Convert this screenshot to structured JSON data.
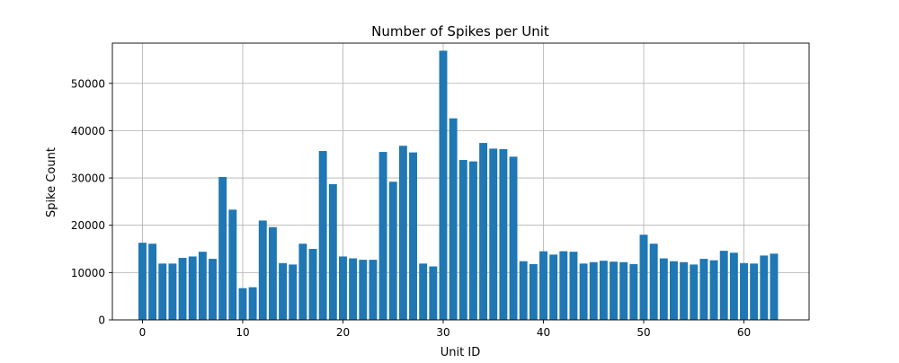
{
  "chart_data": {
    "type": "bar",
    "title": "Number of Spikes per Unit",
    "xlabel": "Unit ID",
    "ylabel": "Spike Count",
    "xlim": [
      -3,
      66.5
    ],
    "ylim": [
      0,
      58500
    ],
    "xticks": [
      0,
      10,
      20,
      30,
      40,
      50,
      60
    ],
    "yticks": [
      0,
      10000,
      20000,
      30000,
      40000,
      50000
    ],
    "grid": true,
    "bar_color": "#1f77b4",
    "x": [
      0,
      1,
      2,
      3,
      4,
      5,
      6,
      7,
      8,
      9,
      10,
      11,
      12,
      13,
      14,
      15,
      16,
      17,
      18,
      19,
      20,
      21,
      22,
      23,
      24,
      25,
      26,
      27,
      28,
      29,
      30,
      31,
      32,
      33,
      34,
      35,
      36,
      37,
      38,
      39,
      40,
      41,
      42,
      43,
      44,
      45,
      46,
      47,
      48,
      49,
      50,
      51,
      52,
      53,
      54,
      55,
      56,
      57,
      58,
      59,
      60,
      61,
      62,
      63
    ],
    "values": [
      16300,
      16100,
      11900,
      11900,
      13100,
      13400,
      14400,
      12900,
      30200,
      23300,
      6700,
      6900,
      21000,
      19600,
      12000,
      11700,
      16100,
      15000,
      35700,
      28700,
      13400,
      13000,
      12700,
      12700,
      35500,
      29200,
      36800,
      35400,
      11900,
      11300,
      56900,
      42600,
      33800,
      33500,
      37400,
      36200,
      36100,
      34500,
      12400,
      11800,
      14500,
      13800,
      14500,
      14400,
      11900,
      12200,
      12500,
      12300,
      12200,
      11800,
      18000,
      16100,
      13000,
      12400,
      12200,
      11700,
      12900,
      12600,
      14600,
      14200,
      12000,
      11900,
      13600,
      14000
    ]
  }
}
